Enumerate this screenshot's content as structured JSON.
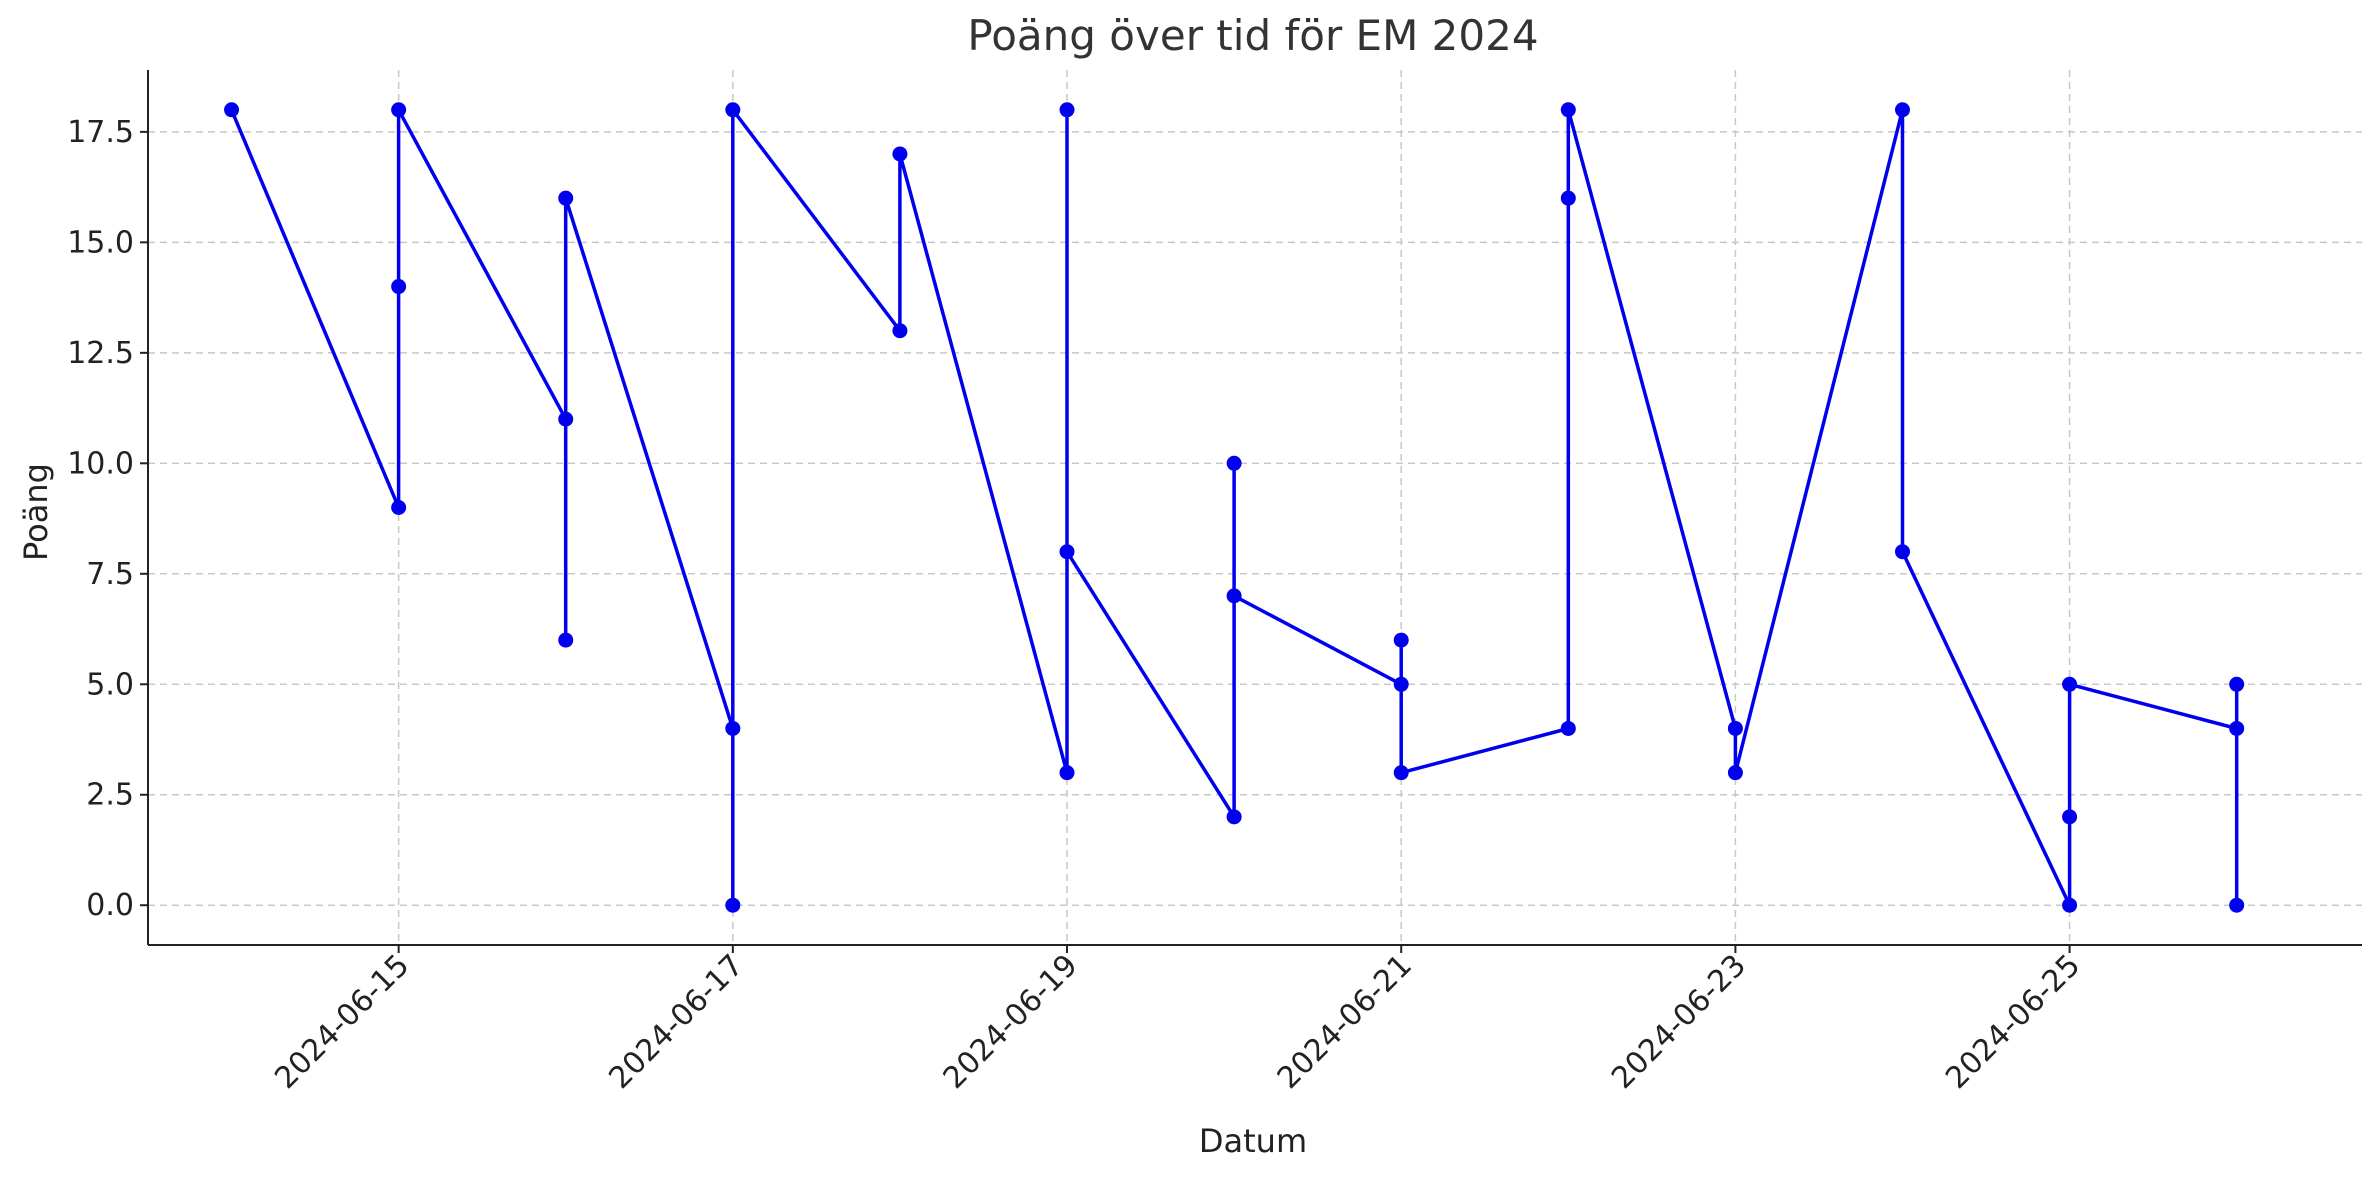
{
  "chart_data": {
    "type": "line",
    "title": "Poäng över tid för EM 2024",
    "xlabel": "Datum",
    "ylabel": "Poäng",
    "xlim": [
      "2024-06-13T12:00",
      "2024-06-26T18:00"
    ],
    "ylim": [
      -0.9,
      18.9
    ],
    "x_ticks": [
      "2024-06-15",
      "2024-06-17",
      "2024-06-19",
      "2024-06-21",
      "2024-06-23",
      "2024-06-25"
    ],
    "y_ticks": [
      0.0,
      2.5,
      5.0,
      7.5,
      10.0,
      12.5,
      15.0,
      17.5
    ],
    "y_tick_labels": [
      "0.0",
      "2.5",
      "5.0",
      "7.5",
      "10.0",
      "12.5",
      "15.0",
      "17.5"
    ],
    "grid": true,
    "color": "#0000ee",
    "series": [
      {
        "points": [
          {
            "x": "2024-06-14",
            "y": 18
          },
          {
            "x": "2024-06-15",
            "y": 9
          },
          {
            "x": "2024-06-15",
            "y": 14
          },
          {
            "x": "2024-06-15",
            "y": 18
          },
          {
            "x": "2024-06-16",
            "y": 11
          },
          {
            "x": "2024-06-16",
            "y": 6
          },
          {
            "x": "2024-06-16",
            "y": 16
          },
          {
            "x": "2024-06-17",
            "y": 4
          },
          {
            "x": "2024-06-17",
            "y": 0
          },
          {
            "x": "2024-06-17",
            "y": 18
          },
          {
            "x": "2024-06-18",
            "y": 13
          },
          {
            "x": "2024-06-18",
            "y": 17
          },
          {
            "x": "2024-06-19",
            "y": 3
          },
          {
            "x": "2024-06-19",
            "y": 18
          },
          {
            "x": "2024-06-19",
            "y": 8
          },
          {
            "x": "2024-06-20",
            "y": 2
          },
          {
            "x": "2024-06-20",
            "y": 10
          },
          {
            "x": "2024-06-20",
            "y": 7
          },
          {
            "x": "2024-06-21",
            "y": 5
          },
          {
            "x": "2024-06-21",
            "y": 6
          },
          {
            "x": "2024-06-21",
            "y": 3
          },
          {
            "x": "2024-06-22",
            "y": 4
          },
          {
            "x": "2024-06-22",
            "y": 16
          },
          {
            "x": "2024-06-22",
            "y": 18
          },
          {
            "x": "2024-06-23",
            "y": 4
          },
          {
            "x": "2024-06-23",
            "y": 3
          },
          {
            "x": "2024-06-24",
            "y": 18
          },
          {
            "x": "2024-06-24",
            "y": 8
          },
          {
            "x": "2024-06-25",
            "y": 0
          },
          {
            "x": "2024-06-25",
            "y": 2
          },
          {
            "x": "2024-06-25",
            "y": 5
          },
          {
            "x": "2024-06-26",
            "y": 4
          },
          {
            "x": "2024-06-26",
            "y": 0
          },
          {
            "x": "2024-06-26",
            "y": 5
          }
        ]
      }
    ]
  }
}
